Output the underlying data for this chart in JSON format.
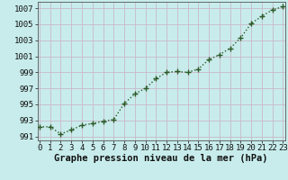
{
  "x": [
    0,
    1,
    2,
    3,
    4,
    5,
    6,
    7,
    8,
    9,
    10,
    11,
    12,
    13,
    14,
    15,
    16,
    17,
    18,
    19,
    20,
    21,
    22,
    23
  ],
  "y": [
    992.2,
    992.2,
    991.3,
    991.8,
    992.4,
    992.6,
    992.9,
    993.1,
    995.1,
    996.3,
    997.0,
    998.2,
    999.0,
    999.1,
    999.0,
    999.4,
    1000.6,
    1001.2,
    1002.0,
    1003.3,
    1005.1,
    1006.0,
    1006.8,
    1007.2
  ],
  "line_color": "#2d5a27",
  "marker": "+",
  "bg_color": "#c8ecec",
  "grid_color": "#c8b8c8",
  "xlabel": "Graphe pression niveau de la mer (hPa)",
  "ylim_min": 990.5,
  "ylim_max": 1007.8,
  "yticks": [
    991,
    993,
    995,
    997,
    999,
    1001,
    1003,
    1005,
    1007
  ],
  "xlim_min": -0.2,
  "xlim_max": 23.2,
  "tick_fontsize": 6.5,
  "xlabel_fontsize": 7.5,
  "line_width": 1.0,
  "marker_size": 4.5,
  "marker_edge_width": 1.0
}
